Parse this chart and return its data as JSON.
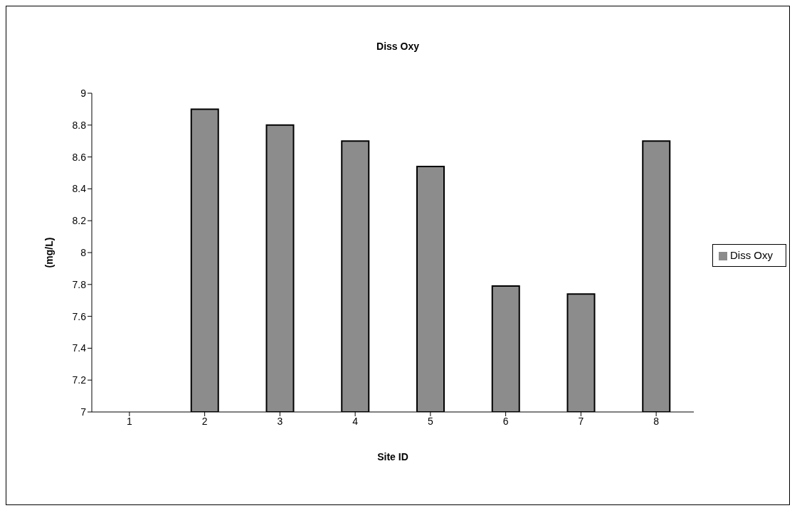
{
  "chart_data": {
    "type": "bar",
    "title": "Diss Oxy",
    "xlabel": "Site ID",
    "ylabel": "(mg/L)",
    "categories": [
      "1",
      "2",
      "3",
      "4",
      "5",
      "6",
      "7",
      "8"
    ],
    "series": [
      {
        "name": "Diss Oxy",
        "color": "#8c8c8c",
        "values": [
          null,
          8.9,
          8.8,
          8.7,
          8.54,
          7.79,
          7.74,
          8.7
        ]
      }
    ],
    "ylim": [
      7,
      9
    ],
    "yticks": [
      7,
      7.2,
      7.4,
      7.6,
      7.8,
      8,
      8.2,
      8.4,
      8.6,
      8.8,
      9
    ],
    "grid": false,
    "legend": "right"
  }
}
